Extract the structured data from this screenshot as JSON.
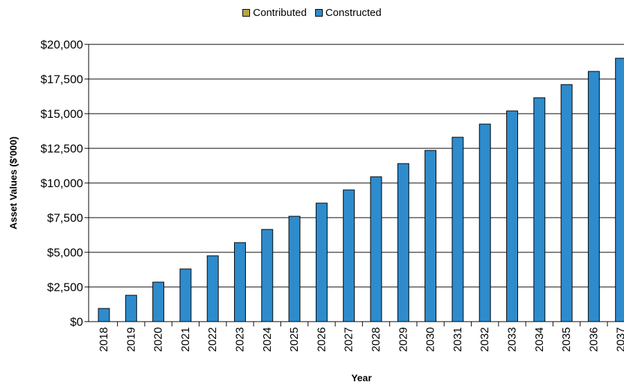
{
  "chart_data": {
    "type": "bar",
    "legend_position": "top-center",
    "legend": [
      {
        "name": "Contributed",
        "color": "#b5a642"
      },
      {
        "name": "Constructed",
        "color": "#2e8bcc"
      }
    ],
    "categories": [
      "2018",
      "2019",
      "2020",
      "2021",
      "2022",
      "2023",
      "2024",
      "2025",
      "2026",
      "2027",
      "2028",
      "2029",
      "2030",
      "2031",
      "2032",
      "2033",
      "2034",
      "2035",
      "2036",
      "2037"
    ],
    "series": [
      {
        "name": "Contributed",
        "color": "#b5a642",
        "values": [
          0,
          0,
          0,
          0,
          0,
          0,
          0,
          0,
          0,
          0,
          0,
          0,
          0,
          0,
          0,
          0,
          0,
          0,
          0,
          0
        ]
      },
      {
        "name": "Constructed",
        "color": "#2e8bcc",
        "values": [
          950,
          1900,
          2850,
          3800,
          4750,
          5700,
          6650,
          7600,
          8550,
          9500,
          10450,
          11400,
          12350,
          13300,
          14250,
          15200,
          16150,
          17100,
          18050,
          19000
        ]
      }
    ],
    "xlabel": "Year",
    "ylabel": "Asset Values ($'000)",
    "ylim": [
      0,
      20000
    ],
    "yticks": [
      "$0",
      "$2,500",
      "$5,000",
      "$7,500",
      "$10,000",
      "$12,500",
      "$15,000",
      "$17,500",
      "$20,000"
    ],
    "grid": true
  }
}
